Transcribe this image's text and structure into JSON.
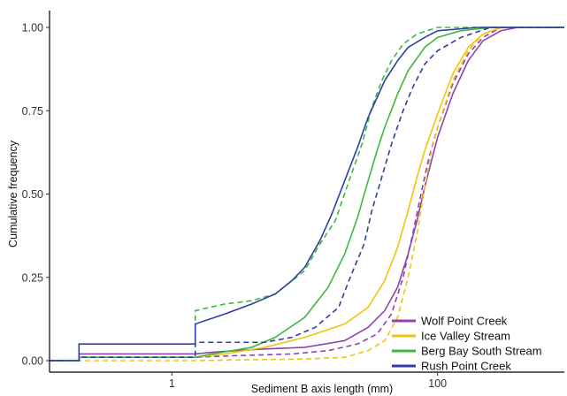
{
  "chart_data": {
    "type": "line",
    "subtype": "step-ecdf",
    "xlabel": "Sediment B axis length (mm)",
    "ylabel": "Cumulative frequency",
    "x_scale": "log10",
    "xlim": [
      0.12,
      900
    ],
    "ylim": [
      0,
      1
    ],
    "x_ticks": [
      {
        "value": 1,
        "label": "1"
      },
      {
        "value": 100,
        "label": "100"
      }
    ],
    "y_ticks": [
      {
        "value": 0.0,
        "label": "0.00"
      },
      {
        "value": 0.25,
        "label": "0.25"
      },
      {
        "value": 0.5,
        "label": "0.50"
      },
      {
        "value": 0.75,
        "label": "0.75"
      },
      {
        "value": 1.0,
        "label": "1.00"
      }
    ],
    "grid": false,
    "legend_position": "bottom-right",
    "legend": [
      {
        "label": "Wolf Point Creek",
        "color": "#8e44ad"
      },
      {
        "label": "Ice Valley Stream",
        "color": "#f1c40f"
      },
      {
        "label": "Berg Bay South Stream",
        "color": "#3db83d"
      },
      {
        "label": "Rush Point Creek",
        "color": "#2e3fa3"
      }
    ],
    "series": [
      {
        "key": "wolf-solid",
        "color": "#8e44ad",
        "dash": "solid",
        "points": [
          [
            0.12,
            0.0
          ],
          [
            0.2,
            0.0
          ],
          [
            0.2,
            0.02
          ],
          [
            1.5,
            0.02
          ],
          [
            2.0,
            0.025
          ],
          [
            3,
            0.03
          ],
          [
            5,
            0.035
          ],
          [
            10,
            0.04
          ],
          [
            20,
            0.06
          ],
          [
            30,
            0.1
          ],
          [
            40,
            0.15
          ],
          [
            50,
            0.22
          ],
          [
            60,
            0.32
          ],
          [
            70,
            0.42
          ],
          [
            80,
            0.52
          ],
          [
            90,
            0.6
          ],
          [
            100,
            0.67
          ],
          [
            130,
            0.8
          ],
          [
            170,
            0.9
          ],
          [
            220,
            0.96
          ],
          [
            300,
            0.99
          ],
          [
            400,
            1.0
          ],
          [
            900,
            1.0
          ]
        ]
      },
      {
        "key": "wolf-dashed",
        "color": "#8e44ad",
        "dash": "dashed",
        "points": [
          [
            0.12,
            0.0
          ],
          [
            0.2,
            0.0
          ],
          [
            0.2,
            0.01
          ],
          [
            1.5,
            0.01
          ],
          [
            3,
            0.015
          ],
          [
            8,
            0.02
          ],
          [
            15,
            0.03
          ],
          [
            25,
            0.05
          ],
          [
            35,
            0.08
          ],
          [
            45,
            0.14
          ],
          [
            55,
            0.25
          ],
          [
            65,
            0.38
          ],
          [
            75,
            0.5
          ],
          [
            85,
            0.6
          ],
          [
            100,
            0.7
          ],
          [
            130,
            0.83
          ],
          [
            170,
            0.92
          ],
          [
            220,
            0.97
          ],
          [
            300,
            1.0
          ],
          [
            900,
            1.0
          ]
        ]
      },
      {
        "key": "ice-solid",
        "color": "#f1c40f",
        "dash": "solid",
        "points": [
          [
            0.12,
            0.0
          ],
          [
            0.2,
            0.0
          ],
          [
            0.2,
            0.01
          ],
          [
            1.5,
            0.01
          ],
          [
            2.5,
            0.02
          ],
          [
            5,
            0.04
          ],
          [
            10,
            0.07
          ],
          [
            20,
            0.11
          ],
          [
            30,
            0.16
          ],
          [
            40,
            0.24
          ],
          [
            50,
            0.34
          ],
          [
            60,
            0.45
          ],
          [
            70,
            0.55
          ],
          [
            80,
            0.63
          ],
          [
            100,
            0.74
          ],
          [
            130,
            0.86
          ],
          [
            170,
            0.94
          ],
          [
            220,
            0.98
          ],
          [
            300,
            1.0
          ],
          [
            900,
            1.0
          ]
        ]
      },
      {
        "key": "ice-dashed",
        "color": "#f1c40f",
        "dash": "dashed",
        "points": [
          [
            0.12,
            0.0
          ],
          [
            1.5,
            0.0
          ],
          [
            3,
            0.002
          ],
          [
            10,
            0.005
          ],
          [
            20,
            0.01
          ],
          [
            30,
            0.03
          ],
          [
            40,
            0.06
          ],
          [
            50,
            0.13
          ],
          [
            60,
            0.25
          ],
          [
            70,
            0.38
          ],
          [
            80,
            0.52
          ],
          [
            90,
            0.63
          ],
          [
            100,
            0.7
          ],
          [
            130,
            0.84
          ],
          [
            170,
            0.93
          ],
          [
            220,
            0.98
          ],
          [
            300,
            1.0
          ],
          [
            900,
            1.0
          ]
        ]
      },
      {
        "key": "berg-solid",
        "color": "#3db83d",
        "dash": "solid",
        "points": [
          [
            0.12,
            0.0
          ],
          [
            0.2,
            0.0
          ],
          [
            0.2,
            0.01
          ],
          [
            1.5,
            0.01
          ],
          [
            2,
            0.02
          ],
          [
            4,
            0.04
          ],
          [
            6,
            0.07
          ],
          [
            10,
            0.13
          ],
          [
            15,
            0.22
          ],
          [
            20,
            0.32
          ],
          [
            25,
            0.43
          ],
          [
            30,
            0.54
          ],
          [
            35,
            0.63
          ],
          [
            40,
            0.7
          ],
          [
            50,
            0.8
          ],
          [
            60,
            0.87
          ],
          [
            80,
            0.94
          ],
          [
            100,
            0.97
          ],
          [
            150,
            0.99
          ],
          [
            250,
            1.0
          ],
          [
            900,
            1.0
          ]
        ]
      },
      {
        "key": "berg-dashed",
        "color": "#3db83d",
        "dash": "dashed",
        "points": [
          [
            0.12,
            0.0
          ],
          [
            0.2,
            0.0
          ],
          [
            0.2,
            0.01
          ],
          [
            1.5,
            0.01
          ],
          [
            1.5,
            0.15
          ],
          [
            2.5,
            0.17
          ],
          [
            4,
            0.18
          ],
          [
            6,
            0.2
          ],
          [
            10,
            0.27
          ],
          [
            13,
            0.35
          ],
          [
            17,
            0.42
          ],
          [
            22,
            0.55
          ],
          [
            27,
            0.65
          ],
          [
            32,
            0.76
          ],
          [
            38,
            0.84
          ],
          [
            45,
            0.9
          ],
          [
            55,
            0.95
          ],
          [
            70,
            0.98
          ],
          [
            100,
            1.0
          ],
          [
            900,
            1.0
          ]
        ]
      },
      {
        "key": "rush-solid",
        "color": "#2e3fa3",
        "dash": "solid",
        "points": [
          [
            0.12,
            0.0
          ],
          [
            0.2,
            0.0
          ],
          [
            0.2,
            0.05
          ],
          [
            1.5,
            0.05
          ],
          [
            1.5,
            0.11
          ],
          [
            2.5,
            0.14
          ],
          [
            4,
            0.17
          ],
          [
            6,
            0.2
          ],
          [
            8,
            0.24
          ],
          [
            10,
            0.28
          ],
          [
            13,
            0.36
          ],
          [
            16,
            0.44
          ],
          [
            20,
            0.54
          ],
          [
            25,
            0.64
          ],
          [
            30,
            0.73
          ],
          [
            40,
            0.84
          ],
          [
            50,
            0.9
          ],
          [
            60,
            0.94
          ],
          [
            80,
            0.97
          ],
          [
            100,
            0.99
          ],
          [
            200,
            1.0
          ],
          [
            900,
            1.0
          ]
        ]
      },
      {
        "key": "rush-dashed",
        "color": "#2e3fa3",
        "dash": "dashed",
        "points": [
          [
            0.12,
            0.0
          ],
          [
            0.2,
            0.0
          ],
          [
            0.2,
            0.01
          ],
          [
            1.5,
            0.01
          ],
          [
            1.5,
            0.055
          ],
          [
            5,
            0.055
          ],
          [
            8,
            0.07
          ],
          [
            12,
            0.1
          ],
          [
            18,
            0.16
          ],
          [
            22,
            0.25
          ],
          [
            28,
            0.35
          ],
          [
            32,
            0.45
          ],
          [
            38,
            0.55
          ],
          [
            45,
            0.65
          ],
          [
            55,
            0.75
          ],
          [
            65,
            0.82
          ],
          [
            80,
            0.89
          ],
          [
            100,
            0.93
          ],
          [
            150,
            0.97
          ],
          [
            250,
            1.0
          ],
          [
            900,
            1.0
          ]
        ]
      }
    ]
  }
}
